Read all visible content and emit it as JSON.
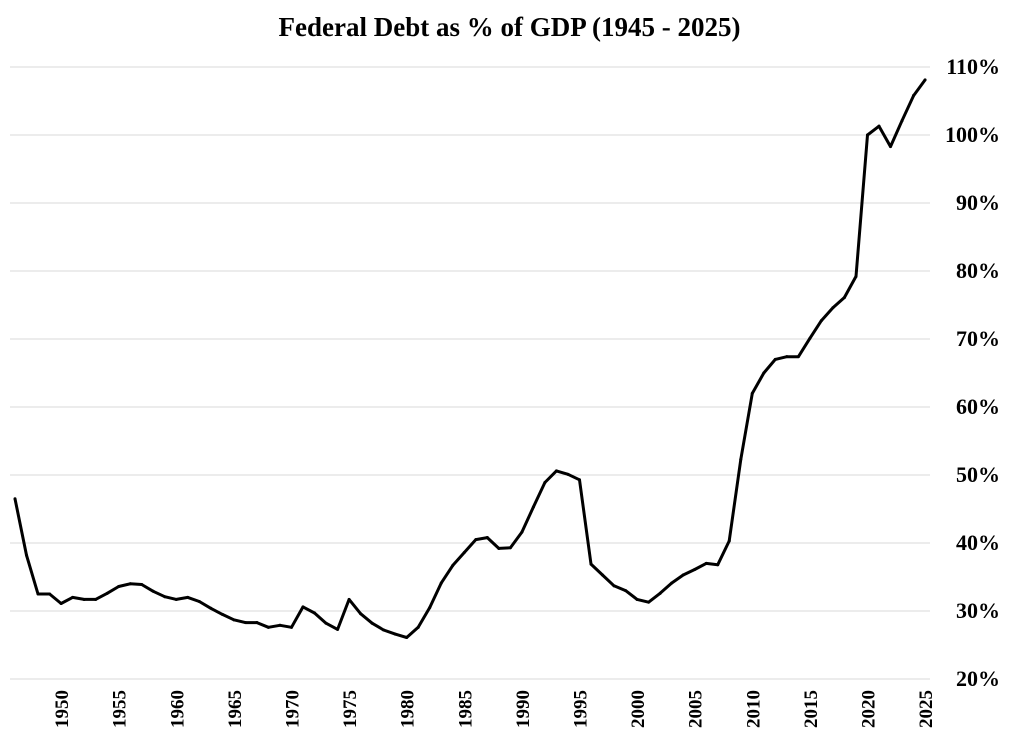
{
  "chart_data": {
    "type": "line",
    "title": "Federal Debt as % of GDP (1945 - 2025)",
    "xlabel": "",
    "ylabel": "",
    "ylim": [
      20,
      110
    ],
    "xlim": [
      1946,
      2025
    ],
    "grid": true,
    "y_axis_position": "right",
    "y_ticks": [
      "20%",
      "30%",
      "40%",
      "50%",
      "60%",
      "70%",
      "80%",
      "90%",
      "100%",
      "110%"
    ],
    "x_ticks": [
      "1950",
      "1955",
      "1960",
      "1965",
      "1970",
      "1975",
      "1980",
      "1985",
      "1990",
      "1995",
      "2000",
      "2005",
      "2010",
      "2015",
      "2020",
      "2025"
    ],
    "line_color": "#000000",
    "grid_color": "#d9d9d9",
    "x": [
      1946,
      1947,
      1948,
      1949,
      1950,
      1951,
      1952,
      1953,
      1954,
      1955,
      1956,
      1957,
      1958,
      1959,
      1960,
      1961,
      1962,
      1963,
      1964,
      1965,
      1966,
      1967,
      1968,
      1969,
      1970,
      1971,
      1972,
      1973,
      1974,
      1975,
      1976,
      1977,
      1978,
      1979,
      1980,
      1981,
      1982,
      1983,
      1984,
      1985,
      1986,
      1987,
      1988,
      1989,
      1990,
      1991,
      1992,
      1993,
      1994,
      1995,
      1996,
      1997,
      1998,
      1999,
      2000,
      2001,
      2002,
      2003,
      2004,
      2005,
      2006,
      2007,
      2008,
      2009,
      2010,
      2011,
      2012,
      2013,
      2014,
      2015,
      2016,
      2017,
      2018,
      2019,
      2020,
      2021,
      2022,
      2023,
      2024,
      2025
    ],
    "values": [
      46.5,
      38.2,
      32.5,
      32.5,
      31.1,
      32.0,
      31.7,
      31.7,
      32.6,
      33.6,
      34.0,
      33.9,
      32.9,
      32.1,
      31.7,
      32.0,
      31.4,
      30.4,
      29.5,
      28.7,
      28.3,
      28.3,
      27.6,
      27.9,
      27.6,
      30.6,
      29.7,
      28.2,
      27.3,
      31.7,
      29.6,
      28.2,
      27.2,
      26.6,
      26.1,
      27.6,
      30.5,
      34.1,
      36.7,
      38.6,
      40.5,
      40.8,
      39.2,
      39.3,
      41.6,
      45.3,
      48.9,
      50.6,
      50.1,
      49.3,
      36.9,
      35.3,
      33.7,
      33.0,
      31.7,
      31.3,
      32.6,
      34.1,
      35.3,
      36.1,
      37.0,
      36.8,
      40.3,
      52.3,
      62.0,
      65.0,
      67.0,
      67.4,
      67.4,
      70.1,
      72.7,
      74.6,
      76.1,
      79.2,
      100.0,
      101.3,
      98.3,
      102.1,
      105.8,
      108.1
    ]
  }
}
